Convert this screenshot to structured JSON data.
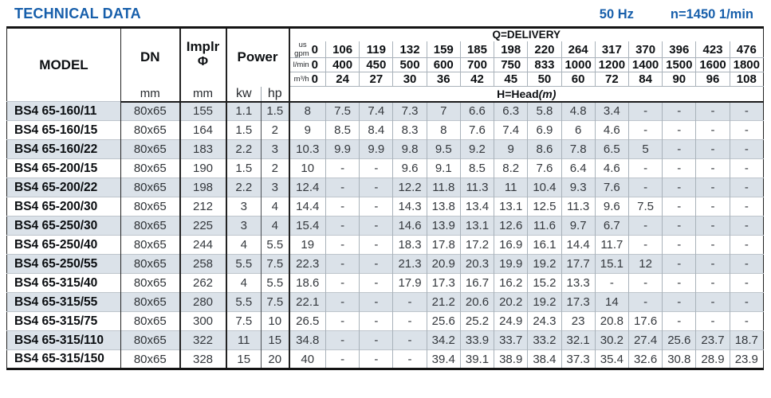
{
  "page": {
    "title": "TECHNICAL DATA",
    "frequency": "50 Hz",
    "speed": "n=1450 1/min"
  },
  "table": {
    "columns": {
      "model": "MODEL",
      "dn": "DN",
      "impeller_line1": "Implr",
      "impeller_line2": "Φ",
      "power": "Power",
      "dn_unit": "mm",
      "impeller_unit": "mm",
      "power_kw_unit": "kw",
      "power_hp_unit": "hp"
    },
    "delivery": {
      "title": "Q=DELIVERY",
      "head_label": "H=Head",
      "head_unit": "(m)",
      "unit_rows": [
        {
          "id": "usgpm",
          "label_top": "us",
          "label_bottom": "gpm",
          "zero": "0",
          "values": [
            "106",
            "119",
            "132",
            "159",
            "185",
            "198",
            "220",
            "264",
            "317",
            "370",
            "396",
            "423",
            "476"
          ]
        },
        {
          "id": "lmin",
          "label": "l/min",
          "zero": "0",
          "values": [
            "400",
            "450",
            "500",
            "600",
            "700",
            "750",
            "833",
            "1000",
            "1200",
            "1400",
            "1500",
            "1600",
            "1800"
          ]
        },
        {
          "id": "m3h",
          "label": "m³/h",
          "zero": "0",
          "values": [
            "24",
            "27",
            "30",
            "36",
            "42",
            "45",
            "50",
            "60",
            "72",
            "84",
            "90",
            "96",
            "108"
          ]
        }
      ]
    },
    "rows": [
      {
        "model": "BS4 65-160/11",
        "dn": "80x65",
        "impeller": "155",
        "kw": "1.1",
        "hp": "1.5",
        "head": [
          "8",
          "7.5",
          "7.4",
          "7.3",
          "7",
          "6.6",
          "6.3",
          "5.8",
          "4.8",
          "3.4",
          "-",
          "-",
          "-",
          "-"
        ]
      },
      {
        "model": "BS4 65-160/15",
        "dn": "80x65",
        "impeller": "164",
        "kw": "1.5",
        "hp": "2",
        "head": [
          "9",
          "8.5",
          "8.4",
          "8.3",
          "8",
          "7.6",
          "7.4",
          "6.9",
          "6",
          "4.6",
          "-",
          "-",
          "-",
          "-"
        ]
      },
      {
        "model": "BS4 65-160/22",
        "dn": "80x65",
        "impeller": "183",
        "kw": "2.2",
        "hp": "3",
        "head": [
          "10.3",
          "9.9",
          "9.9",
          "9.8",
          "9.5",
          "9.2",
          "9",
          "8.6",
          "7.8",
          "6.5",
          "5",
          "-",
          "-",
          "-"
        ]
      },
      {
        "model": "BS4 65-200/15",
        "dn": "80x65",
        "impeller": "190",
        "kw": "1.5",
        "hp": "2",
        "head": [
          "10",
          "-",
          "-",
          "9.6",
          "9.1",
          "8.5",
          "8.2",
          "7.6",
          "6.4",
          "4.6",
          "-",
          "-",
          "-",
          "-"
        ]
      },
      {
        "model": "BS4 65-200/22",
        "dn": "80x65",
        "impeller": "198",
        "kw": "2.2",
        "hp": "3",
        "head": [
          "12.4",
          "-",
          "-",
          "12.2",
          "11.8",
          "11.3",
          "11",
          "10.4",
          "9.3",
          "7.6",
          "-",
          "-",
          "-",
          "-"
        ]
      },
      {
        "model": "BS4 65-200/30",
        "dn": "80x65",
        "impeller": "212",
        "kw": "3",
        "hp": "4",
        "head": [
          "14.4",
          "-",
          "-",
          "14.3",
          "13.8",
          "13.4",
          "13.1",
          "12.5",
          "11.3",
          "9.6",
          "7.5",
          "-",
          "-",
          "-"
        ]
      },
      {
        "model": "BS4 65-250/30",
        "dn": "80x65",
        "impeller": "225",
        "kw": "3",
        "hp": "4",
        "head": [
          "15.4",
          "-",
          "-",
          "14.6",
          "13.9",
          "13.1",
          "12.6",
          "11.6",
          "9.7",
          "6.7",
          "-",
          "-",
          "-",
          "-"
        ]
      },
      {
        "model": "BS4 65-250/40",
        "dn": "80x65",
        "impeller": "244",
        "kw": "4",
        "hp": "5.5",
        "head": [
          "19",
          "-",
          "-",
          "18.3",
          "17.8",
          "17.2",
          "16.9",
          "16.1",
          "14.4",
          "11.7",
          "-",
          "-",
          "-",
          "-"
        ]
      },
      {
        "model": "BS4 65-250/55",
        "dn": "80x65",
        "impeller": "258",
        "kw": "5.5",
        "hp": "7.5",
        "head": [
          "22.3",
          "-",
          "-",
          "21.3",
          "20.9",
          "20.3",
          "19.9",
          "19.2",
          "17.7",
          "15.1",
          "12",
          "-",
          "-",
          "-"
        ]
      },
      {
        "model": "BS4 65-315/40",
        "dn": "80x65",
        "impeller": "262",
        "kw": "4",
        "hp": "5.5",
        "head": [
          "18.6",
          "-",
          "-",
          "17.9",
          "17.3",
          "16.7",
          "16.2",
          "15.2",
          "13.3",
          "-",
          "-",
          "-",
          "-",
          "-"
        ]
      },
      {
        "model": "BS4 65-315/55",
        "dn": "80x65",
        "impeller": "280",
        "kw": "5.5",
        "hp": "7.5",
        "head": [
          "22.1",
          "-",
          "-",
          "-",
          "21.2",
          "20.6",
          "20.2",
          "19.2",
          "17.3",
          "14",
          "-",
          "-",
          "-",
          "-"
        ]
      },
      {
        "model": "BS4 65-315/75",
        "dn": "80x65",
        "impeller": "300",
        "kw": "7.5",
        "hp": "10",
        "head": [
          "26.5",
          "-",
          "-",
          "-",
          "25.6",
          "25.2",
          "24.9",
          "24.3",
          "23",
          "20.8",
          "17.6",
          "-",
          "-",
          "-"
        ]
      },
      {
        "model": "BS4 65-315/110",
        "dn": "80x65",
        "impeller": "322",
        "kw": "11",
        "hp": "15",
        "head": [
          "34.8",
          "-",
          "-",
          "-",
          "34.2",
          "33.9",
          "33.7",
          "33.2",
          "32.1",
          "30.2",
          "27.4",
          "25.6",
          "23.7",
          "18.7"
        ]
      },
      {
        "model": "BS4 65-315/150",
        "dn": "80x65",
        "impeller": "328",
        "kw": "15",
        "hp": "20",
        "head": [
          "40",
          "-",
          "-",
          "-",
          "39.4",
          "39.1",
          "38.9",
          "38.4",
          "37.3",
          "35.4",
          "32.6",
          "30.8",
          "28.9",
          "23.9"
        ]
      }
    ]
  },
  "colors": {
    "accent_blue": "#175fab",
    "row_shade": "#dbe2e9",
    "grid_gray": "#a9b2ba",
    "heavy_line": "#1a1a1a"
  }
}
